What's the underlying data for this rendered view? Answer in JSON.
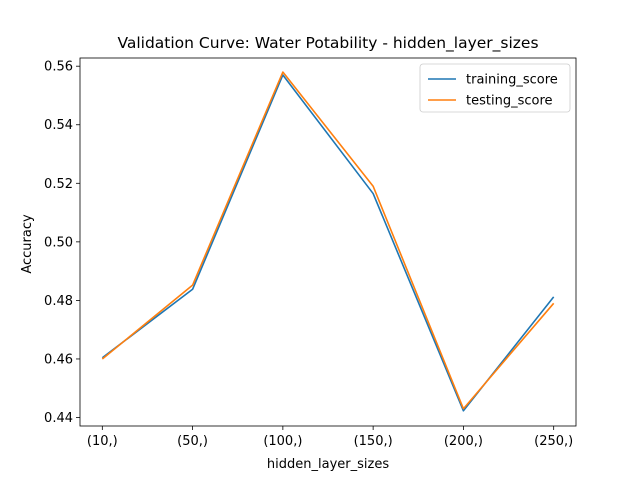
{
  "chart_data": {
    "type": "line",
    "title": "Validation Curve: Water Potability - hidden_layer_sizes",
    "xlabel": "hidden_layer_sizes",
    "ylabel": "Accuracy",
    "categories": [
      "(10,)",
      "(50,)",
      "(100,)",
      "(150,)",
      "(200,)",
      "(250,)"
    ],
    "ylim": [
      0.4371,
      0.5628
    ],
    "yticks": [
      0.44,
      0.46,
      0.48,
      0.5,
      0.52,
      0.54,
      0.56
    ],
    "ytick_labels": [
      "0.44",
      "0.46",
      "0.48",
      "0.50",
      "0.52",
      "0.54",
      "0.56"
    ],
    "grid": false,
    "legend_position": "top-right",
    "series": [
      {
        "name": "training_score",
        "color": "#1f77b4",
        "values": [
          0.4604,
          0.4838,
          0.557,
          0.5165,
          0.4423,
          0.4812
        ]
      },
      {
        "name": "testing_score",
        "color": "#ff7f0e",
        "values": [
          0.46,
          0.4852,
          0.558,
          0.519,
          0.443,
          0.479
        ]
      }
    ]
  }
}
